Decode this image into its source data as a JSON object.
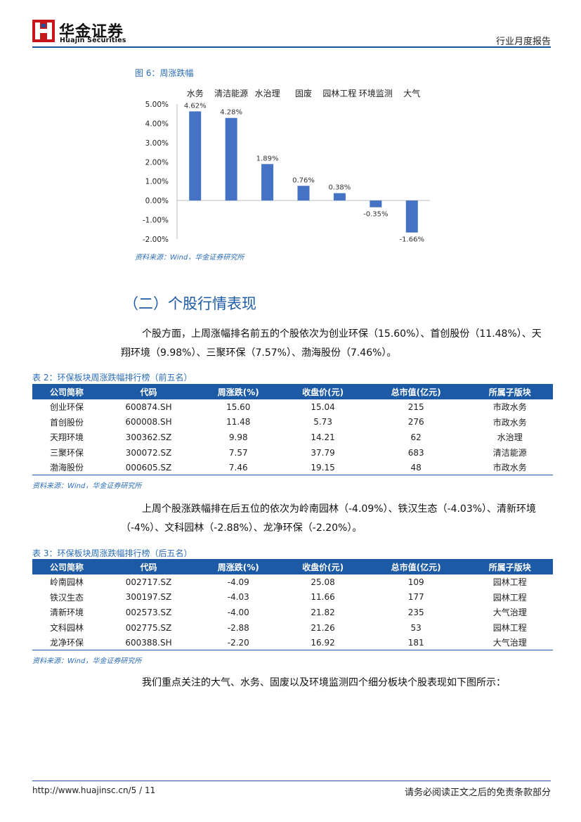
{
  "header": {
    "brand_cn": "华金证券",
    "brand_en": "Huajin Securities",
    "report_type": "行业月度报告",
    "logo_color": "#c8161d"
  },
  "figure6": {
    "title": "图 6：周涨跌幅",
    "source": "资料来源：Wind，华金证券研究所"
  },
  "chart_data": {
    "type": "bar",
    "categories": [
      "水务",
      "清洁能源",
      "水治理",
      "固废",
      "园林工程",
      "环境监测",
      "大气"
    ],
    "values": [
      4.62,
      4.28,
      1.89,
      0.76,
      0.38,
      -0.35,
      -1.66
    ],
    "value_labels": [
      "4.62%",
      "4.28%",
      "1.89%",
      "0.76%",
      "0.38%",
      "-0.35%",
      "-1.66%"
    ],
    "ylim": [
      -2.0,
      5.0
    ],
    "yticks": [
      5.0,
      4.0,
      3.0,
      2.0,
      1.0,
      0.0,
      -1.0,
      -2.0
    ],
    "ytick_labels": [
      "5.00%",
      "4.00%",
      "3.00%",
      "2.00%",
      "1.00%",
      "0.00%",
      "-1.00%",
      "-2.00%"
    ],
    "bar_color": "#4472c4",
    "category_axis_position": "top",
    "grid": false
  },
  "section": {
    "title": "（二）个股行情表现",
    "para1": "个股方面，上周涨幅排名前五的个股依次为创业环保（15.60%）、首创股份（11.48%）、天翔环境（9.98%）、三聚环保（7.57%）、渤海股份（7.46%）。",
    "para2": "上周个股涨跌幅排在后五位的依次为岭南园林（-4.09%）、铁汉生态（-4.03%）、清新环境（-4%）、文科园林（-2.88%）、龙净环保（-2.20%）。",
    "para3": "我们重点关注的大气、水务、固废以及环境监测四个细分板块个股表现如下图所示："
  },
  "table2": {
    "title": "表 2：环保板块周涨跌幅排行榜（前五名）",
    "headers": [
      "公司简称",
      "代码",
      "周涨跌(%)",
      "收盘价(元)",
      "总市值(亿元)",
      "所属子版块"
    ],
    "rows": [
      [
        "创业环保",
        "600874.SH",
        "15.60",
        "15.04",
        "215",
        "市政水务"
      ],
      [
        "首创股份",
        "600008.SH",
        "11.48",
        "5.73",
        "276",
        "市政水务"
      ],
      [
        "天翔环境",
        "300362.SZ",
        "9.98",
        "14.21",
        "62",
        "水治理"
      ],
      [
        "三聚环保",
        "300072.SZ",
        "7.57",
        "37.79",
        "683",
        "清洁能源"
      ],
      [
        "渤海股份",
        "000605.SZ",
        "7.46",
        "19.15",
        "48",
        "市政水务"
      ]
    ],
    "source": "资料来源：Wind，华金证券研究所"
  },
  "table3": {
    "title": "表 3：环保板块周涨跌幅排行榜（后五名）",
    "headers": [
      "公司简称",
      "代码",
      "周涨跌(%)",
      "收盘价(元)",
      "总市值(亿元)",
      "所属子版块"
    ],
    "rows": [
      [
        "岭南园林",
        "002717.SZ",
        "-4.09",
        "25.08",
        "109",
        "园林工程"
      ],
      [
        "铁汉生态",
        "300197.SZ",
        "-4.03",
        "11.66",
        "177",
        "园林工程"
      ],
      [
        "清新环境",
        "002573.SZ",
        "-4.00",
        "21.82",
        "235",
        "大气治理"
      ],
      [
        "文科园林",
        "002775.SZ",
        "-2.88",
        "21.26",
        "53",
        "园林工程"
      ],
      [
        "龙净环保",
        "600388.SH",
        "-2.20",
        "16.92",
        "181",
        "大气治理"
      ]
    ],
    "source": "资料来源：Wind，华金证券研究所"
  },
  "footer": {
    "url_page": "http://www.huajinsc.cn/5 / 11",
    "disclaimer": "请务必阅读正文之后的免责条款部分"
  }
}
